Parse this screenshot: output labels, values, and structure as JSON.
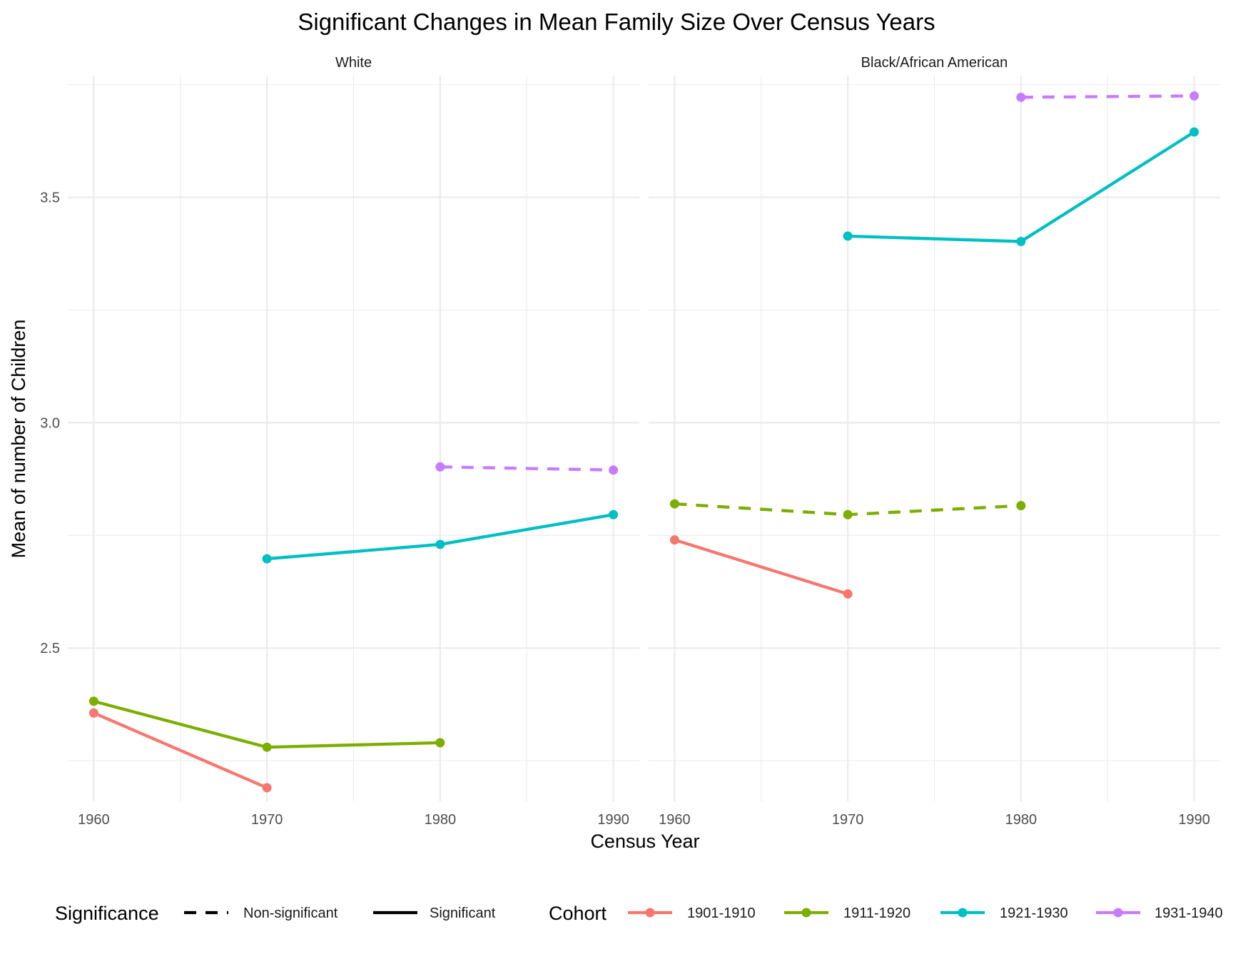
{
  "chart_data": {
    "type": "line",
    "title": "Significant Changes in Mean Family Size Over Census Years",
    "xlabel": "Census Year",
    "ylabel": "Mean of number of Children",
    "xlim": [
      1958.5,
      1991.5
    ],
    "ylim": [
      2.16,
      3.77
    ],
    "xticks": [
      1960,
      1970,
      1980,
      1990
    ],
    "xtick_labels": [
      "1960",
      "1970",
      "1980",
      "1990"
    ],
    "xminor": [
      1965,
      1975,
      1985
    ],
    "yticks": [
      2.5,
      3.0,
      3.5
    ],
    "ytick_labels": [
      "2.5",
      "3.0",
      "3.5"
    ],
    "yminor": [
      2.25,
      2.75,
      3.25,
      3.75
    ],
    "grid": true,
    "legend_position": "bottom",
    "facets": [
      {
        "label": "White",
        "series": [
          {
            "cohort": "1901-1910",
            "significance": "Significant",
            "x": [
              1960,
              1970
            ],
            "y": [
              2.356,
              2.19
            ]
          },
          {
            "cohort": "1911-1920",
            "significance": "Significant",
            "x": [
              1960,
              1970,
              1980
            ],
            "y": [
              2.382,
              2.28,
              2.29
            ]
          },
          {
            "cohort": "1921-1930",
            "significance": "Significant",
            "x": [
              1970,
              1980,
              1990
            ],
            "y": [
              2.698,
              2.73,
              2.796
            ]
          },
          {
            "cohort": "1931-1940",
            "significance": "Non-significant",
            "x": [
              1980,
              1990
            ],
            "y": [
              2.902,
              2.895
            ]
          }
        ]
      },
      {
        "label": "Black/African American",
        "series": [
          {
            "cohort": "1901-1910",
            "significance": "Significant",
            "x": [
              1960,
              1970
            ],
            "y": [
              2.74,
              2.62
            ]
          },
          {
            "cohort": "1911-1920",
            "significance": "Non-significant",
            "x": [
              1960,
              1970,
              1980
            ],
            "y": [
              2.82,
              2.796,
              2.816
            ]
          },
          {
            "cohort": "1921-1930",
            "significance": "Significant",
            "x": [
              1970,
              1980,
              1990
            ],
            "y": [
              3.414,
              3.402,
              3.645
            ]
          },
          {
            "cohort": "1931-1940",
            "significance": "Non-significant",
            "x": [
              1980,
              1990
            ],
            "y": [
              3.722,
              3.725
            ]
          }
        ]
      }
    ],
    "legend": {
      "significance_title": "Significance",
      "significance_items": [
        {
          "label": "Non-significant",
          "dash": true
        },
        {
          "label": "Significant",
          "dash": false
        }
      ],
      "cohort_title": "Cohort",
      "cohort_items": [
        {
          "label": "1901-1910",
          "color": "#F8766D"
        },
        {
          "label": "1911-1920",
          "color": "#7CAE00"
        },
        {
          "label": "1921-1930",
          "color": "#00BFC4"
        },
        {
          "label": "1931-1940",
          "color": "#C77CFF"
        }
      ]
    }
  }
}
